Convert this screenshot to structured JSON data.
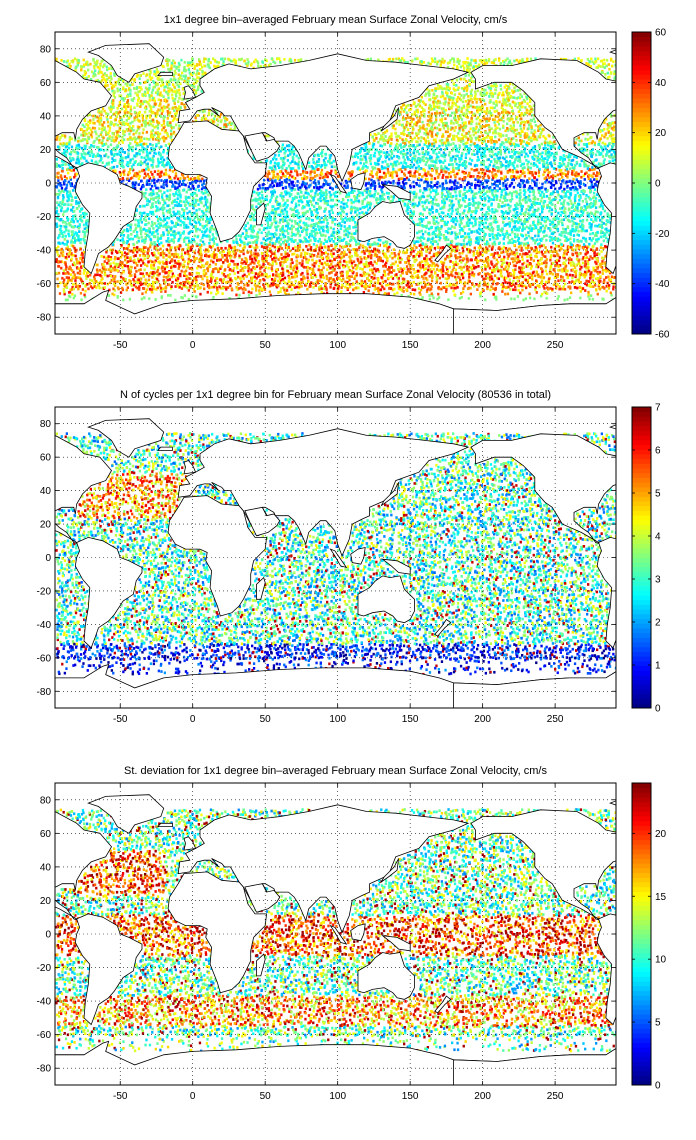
{
  "chart_data": [
    {
      "type": "heatmap",
      "title": "1x1 degree bin–averaged February mean Surface Zonal Velocity, cm/s",
      "xlim": [
        -95,
        292
      ],
      "ylim": [
        -90,
        90
      ],
      "x_ticks": [
        -50,
        0,
        50,
        100,
        150,
        200,
        250
      ],
      "y_ticks": [
        -80,
        -60,
        -40,
        -20,
        0,
        20,
        40,
        60,
        80
      ],
      "grid": true,
      "colorbar": {
        "min": -60,
        "max": 60,
        "ticks": [
          -60,
          -40,
          -20,
          0,
          20,
          40,
          60
        ],
        "colormap": "jet"
      },
      "kind": "velocity"
    },
    {
      "type": "heatmap",
      "title": "N of cycles per 1x1 degree bin for February mean Surface Zonal Velocity (80536 in total)",
      "xlim": [
        -95,
        292
      ],
      "ylim": [
        -90,
        90
      ],
      "x_ticks": [
        -50,
        0,
        50,
        100,
        150,
        200,
        250
      ],
      "y_ticks": [
        -80,
        -60,
        -40,
        -20,
        0,
        20,
        40,
        60,
        80
      ],
      "grid": true,
      "colorbar": {
        "min": 0,
        "max": 7,
        "ticks": [
          0,
          1,
          2,
          3,
          4,
          5,
          6,
          7
        ],
        "colormap": "jet"
      },
      "kind": "count"
    },
    {
      "type": "heatmap",
      "title": "St. deviation for 1x1 degree bin–averaged February mean Surface Zonal Velocity, cm/s",
      "xlim": [
        -95,
        292
      ],
      "ylim": [
        -90,
        90
      ],
      "x_ticks": [
        -50,
        0,
        50,
        100,
        150,
        200,
        250
      ],
      "y_ticks": [
        -80,
        -60,
        -40,
        -20,
        0,
        20,
        40,
        60,
        80
      ],
      "grid": true,
      "colorbar": {
        "min": 0,
        "max": 24,
        "ticks": [
          0,
          5,
          10,
          15,
          20
        ],
        "colormap": "jet"
      },
      "kind": "std"
    }
  ]
}
